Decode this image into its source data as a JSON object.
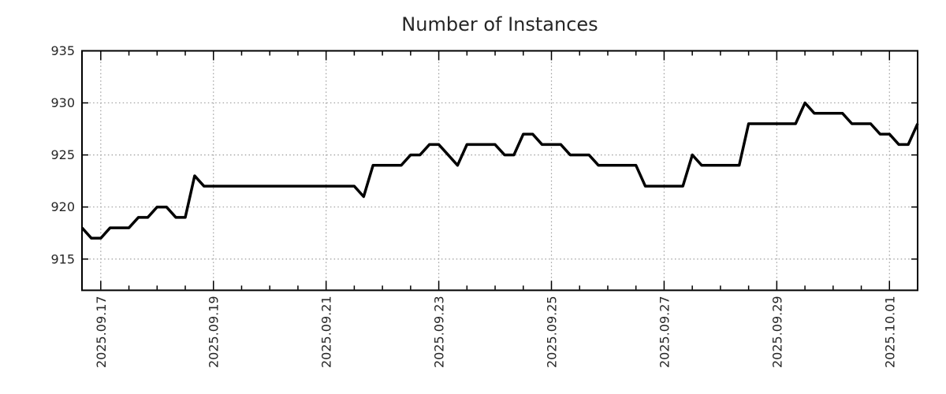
{
  "chart_data": {
    "type": "line",
    "title": "Number of Instances",
    "xlabel": "",
    "ylabel": "",
    "legend_position": "none",
    "grid": "dotted-major",
    "ylim": [
      912,
      935
    ],
    "y_ticks": [
      915,
      920,
      925,
      930,
      935
    ],
    "x_tick_labels": [
      "2025.09.17",
      "2025.09.19",
      "2025.09.21",
      "2025.09.23",
      "2025.09.25",
      "2025.09.27",
      "2025.09.29",
      "2025.10.01"
    ],
    "x_tick_sample_indices": [
      2,
      14,
      26,
      38,
      50,
      62,
      74,
      86
    ],
    "x_minor_tick_every_samples": 3,
    "colors": {
      "line": "#000000",
      "axis": "#000000",
      "grid": "#9e9e9e",
      "text": "#262626",
      "background": "#ffffff"
    },
    "series": [
      {
        "name": "Number of Instances",
        "values": [
          918,
          917,
          917,
          918,
          918,
          918,
          919,
          919,
          920,
          920,
          919,
          919,
          923,
          922,
          922,
          922,
          922,
          922,
          922,
          922,
          922,
          922,
          922,
          922,
          922,
          922,
          922,
          922,
          922,
          922,
          921,
          924,
          924,
          924,
          924,
          925,
          925,
          926,
          926,
          925,
          924,
          926,
          926,
          926,
          926,
          925,
          925,
          927,
          927,
          926,
          926,
          926,
          925,
          925,
          925,
          924,
          924,
          924,
          924,
          924,
          922,
          922,
          922,
          922,
          922,
          925,
          924,
          924,
          924,
          924,
          924,
          928,
          928,
          928,
          928,
          928,
          928,
          930,
          929,
          929,
          929,
          929,
          928,
          928,
          928,
          927,
          927,
          926,
          926,
          928
        ]
      }
    ]
  }
}
